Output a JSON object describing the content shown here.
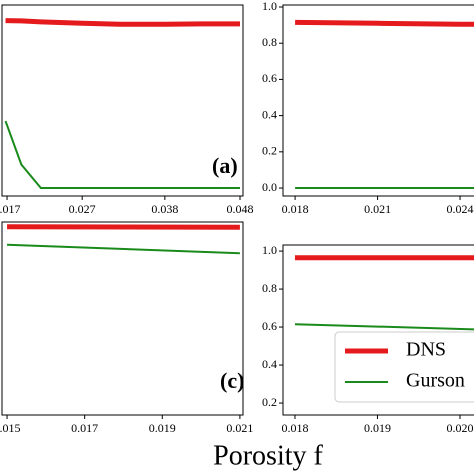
{
  "xlabel": "Porosity f",
  "chart_data": [
    {
      "type": "line",
      "panel_label": "(a)",
      "xlim": [
        0.01633,
        0.0484
      ],
      "ylim": [
        -0.044,
        1.011
      ],
      "xticks": [
        0.017,
        0.027,
        0.038,
        0.048
      ],
      "yticks": [],
      "x": [
        0.0168,
        0.0189,
        0.0215,
        0.027,
        0.032,
        0.038,
        0.043,
        0.048
      ],
      "series": [
        {
          "color": "#e41a1c",
          "values": [
            0.925,
            0.923,
            0.918,
            0.91,
            0.905,
            0.905,
            0.907,
            0.907
          ]
        },
        {
          "color": "#1a8a1a",
          "values": [
            0.37,
            0.13,
            0,
            0,
            0,
            0,
            0,
            0
          ]
        }
      ]
    },
    {
      "type": "line",
      "xlim": [
        0.01756,
        0.02509
      ],
      "ylim": [
        -0.044,
        1.011
      ],
      "xticks": [
        0.018,
        0.021,
        0.024
      ],
      "yticks": [
        {
          "value": 0,
          "label": "0.0"
        },
        0.2,
        0.4,
        0.6,
        0.8,
        {
          "value": 1,
          "label": "1.0"
        }
      ],
      "x": [
        0.018,
        0.021,
        0.024,
        0.025
      ],
      "series": [
        {
          "color": "#e41a1c",
          "values": [
            0.915,
            0.91,
            0.905,
            0.905
          ]
        },
        {
          "color": "#1a8a1a",
          "values": [
            0,
            0,
            0,
            0
          ]
        }
      ]
    },
    {
      "type": "line",
      "panel_label": "(c)",
      "xlim": [
        0.01487,
        0.02108
      ],
      "ylim": [
        -0.02,
        1.0
      ],
      "xticks": [
        0.015,
        0.017,
        0.019,
        0.021
      ],
      "yticks": [],
      "x": [
        0.015,
        0.021
      ],
      "series": [
        {
          "color": "#e41a1c",
          "values": [
            0.975,
            0.972
          ]
        },
        {
          "color": "#1a8a1a",
          "values": [
            0.88,
            0.835
          ]
        }
      ]
    },
    {
      "type": "line",
      "xlim": [
        0.017855,
        0.020364
      ],
      "ylim": [
        0.137,
        1.032
      ],
      "xticks": [
        0.018,
        0.019,
        {
          "value": 0.02,
          "label": "0.020"
        }
      ],
      "yticks": [
        0.2,
        0.4,
        0.6,
        0.8,
        {
          "value": 1,
          "label": "1.0"
        }
      ],
      "x": [
        0.018,
        0.0204
      ],
      "series": [
        {
          "name": "DNS",
          "color": "#e41a1c",
          "values": [
            0.965,
            0.965
          ]
        },
        {
          "name": "Gurson",
          "color": "#1a8a1a",
          "values": [
            0.615,
            0.585
          ]
        }
      ]
    }
  ]
}
